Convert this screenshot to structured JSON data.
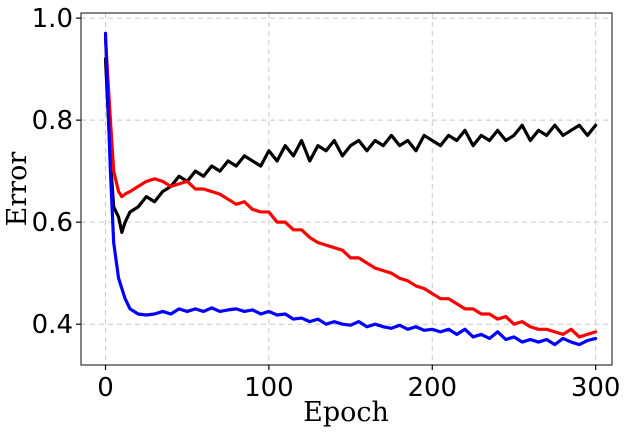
{
  "chart_data": {
    "type": "line",
    "title": "",
    "xlabel": "Epoch",
    "ylabel": "Error",
    "xlim": [
      -15,
      310
    ],
    "ylim": [
      0.32,
      1.01
    ],
    "xticks": [
      0,
      100,
      200,
      300
    ],
    "xtick_labels": [
      "0",
      "100",
      "200",
      "300"
    ],
    "yticks": [
      0.4,
      0.6,
      0.8,
      1.0
    ],
    "ytick_labels": [
      "0.4",
      "0.6",
      "0.8",
      "1.0"
    ],
    "grid": true,
    "legend": "none",
    "series": [
      {
        "color": "#000000",
        "x": [
          0,
          3,
          5,
          8,
          10,
          12,
          15,
          20,
          25,
          30,
          35,
          40,
          45,
          50,
          55,
          60,
          65,
          70,
          75,
          80,
          85,
          90,
          95,
          100,
          105,
          110,
          115,
          120,
          125,
          130,
          135,
          140,
          145,
          150,
          155,
          160,
          165,
          170,
          175,
          180,
          185,
          190,
          195,
          200,
          205,
          210,
          215,
          220,
          225,
          230,
          235,
          240,
          245,
          250,
          255,
          260,
          265,
          270,
          275,
          280,
          285,
          290,
          295,
          300
        ],
        "y": [
          0.92,
          0.72,
          0.63,
          0.61,
          0.58,
          0.6,
          0.62,
          0.63,
          0.65,
          0.64,
          0.66,
          0.67,
          0.69,
          0.68,
          0.7,
          0.69,
          0.71,
          0.7,
          0.72,
          0.71,
          0.73,
          0.72,
          0.71,
          0.74,
          0.72,
          0.75,
          0.73,
          0.76,
          0.72,
          0.75,
          0.74,
          0.76,
          0.73,
          0.75,
          0.76,
          0.74,
          0.76,
          0.75,
          0.77,
          0.75,
          0.76,
          0.74,
          0.77,
          0.76,
          0.75,
          0.77,
          0.76,
          0.78,
          0.75,
          0.77,
          0.76,
          0.78,
          0.76,
          0.77,
          0.79,
          0.76,
          0.78,
          0.77,
          0.79,
          0.77,
          0.78,
          0.79,
          0.77,
          0.79
        ]
      },
      {
        "color": "#ff0000",
        "x": [
          0,
          3,
          5,
          8,
          10,
          12,
          15,
          20,
          25,
          30,
          35,
          40,
          45,
          50,
          55,
          60,
          65,
          70,
          75,
          80,
          85,
          90,
          95,
          100,
          105,
          110,
          115,
          120,
          125,
          130,
          135,
          140,
          145,
          150,
          155,
          160,
          165,
          170,
          175,
          180,
          185,
          190,
          195,
          200,
          205,
          210,
          215,
          220,
          225,
          230,
          235,
          240,
          245,
          250,
          255,
          260,
          265,
          270,
          275,
          280,
          285,
          290,
          295,
          300
        ],
        "y": [
          0.96,
          0.8,
          0.7,
          0.66,
          0.65,
          0.655,
          0.66,
          0.67,
          0.68,
          0.685,
          0.68,
          0.67,
          0.675,
          0.68,
          0.665,
          0.665,
          0.66,
          0.655,
          0.645,
          0.635,
          0.64,
          0.625,
          0.62,
          0.62,
          0.6,
          0.6,
          0.585,
          0.585,
          0.57,
          0.56,
          0.555,
          0.55,
          0.545,
          0.53,
          0.53,
          0.52,
          0.51,
          0.505,
          0.5,
          0.49,
          0.485,
          0.475,
          0.47,
          0.46,
          0.45,
          0.45,
          0.44,
          0.43,
          0.43,
          0.42,
          0.42,
          0.41,
          0.415,
          0.4,
          0.405,
          0.395,
          0.39,
          0.39,
          0.385,
          0.38,
          0.39,
          0.375,
          0.38,
          0.385
        ]
      },
      {
        "color": "#0000ff",
        "x": [
          0,
          3,
          5,
          8,
          10,
          12,
          15,
          20,
          25,
          30,
          35,
          40,
          45,
          50,
          55,
          60,
          65,
          70,
          75,
          80,
          85,
          90,
          95,
          100,
          105,
          110,
          115,
          120,
          125,
          130,
          135,
          140,
          145,
          150,
          155,
          160,
          165,
          170,
          175,
          180,
          185,
          190,
          195,
          200,
          205,
          210,
          215,
          220,
          225,
          230,
          235,
          240,
          245,
          250,
          255,
          260,
          265,
          270,
          275,
          280,
          285,
          290,
          295,
          300
        ],
        "y": [
          0.97,
          0.7,
          0.56,
          0.49,
          0.47,
          0.45,
          0.43,
          0.42,
          0.418,
          0.42,
          0.425,
          0.42,
          0.43,
          0.425,
          0.43,
          0.425,
          0.432,
          0.425,
          0.428,
          0.43,
          0.425,
          0.428,
          0.42,
          0.425,
          0.418,
          0.42,
          0.41,
          0.412,
          0.405,
          0.41,
          0.4,
          0.405,
          0.4,
          0.398,
          0.405,
          0.395,
          0.4,
          0.395,
          0.392,
          0.398,
          0.39,
          0.395,
          0.388,
          0.39,
          0.385,
          0.39,
          0.38,
          0.39,
          0.375,
          0.38,
          0.372,
          0.385,
          0.37,
          0.375,
          0.365,
          0.37,
          0.365,
          0.37,
          0.36,
          0.372,
          0.365,
          0.36,
          0.368,
          0.372
        ]
      }
    ]
  }
}
